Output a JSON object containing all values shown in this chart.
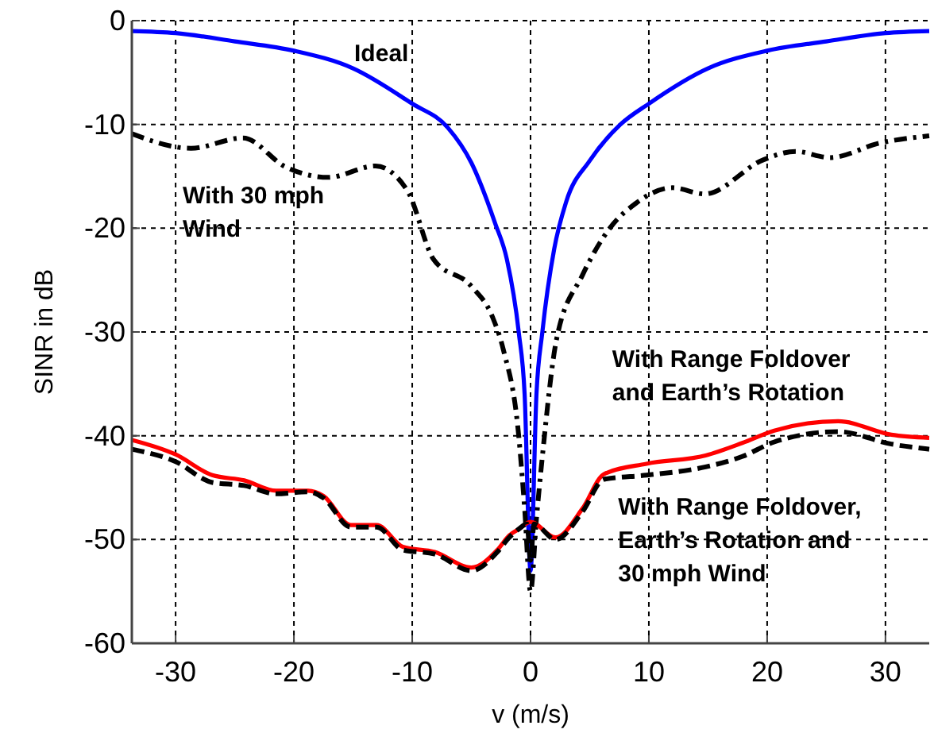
{
  "chart_data": {
    "type": "line",
    "xlabel": "v (m/s)",
    "ylabel": "SINR in dB",
    "xlim": [
      -33.7,
      33.7
    ],
    "ylim": [
      -60,
      0
    ],
    "xticks": [
      -30,
      -20,
      -10,
      0,
      10,
      20,
      30
    ],
    "yticks": [
      -60,
      -50,
      -40,
      -30,
      -20,
      -10,
      0
    ],
    "grid": true,
    "series": [
      {
        "name": "Ideal",
        "color": "#0000ff",
        "line_style": "solid",
        "x": [
          -33.7,
          -30,
          -25,
          -20,
          -15,
          -10,
          -7,
          -5,
          -3,
          -2,
          -1,
          -0.5,
          0,
          0.5,
          1,
          2,
          3,
          5,
          7.6,
          10,
          15,
          20,
          25,
          30,
          33.7
        ],
        "values": [
          -1.0,
          -1.2,
          -2.0,
          -2.9,
          -4.6,
          -8,
          -10.3,
          -13.7,
          -19.5,
          -23,
          -30,
          -36,
          -53,
          -36,
          -30,
          -22,
          -17.5,
          -13.5,
          -10,
          -8,
          -4.6,
          -2.9,
          -2.0,
          -1.2,
          -1.0
        ]
      },
      {
        "name": "With 30 mph\nWind",
        "color": "#000000",
        "line_style": "dashdot",
        "x": [
          -33.7,
          -28.7,
          -24.3,
          -20.7,
          -17.1,
          -13.1,
          -10.4,
          -8.2,
          -5,
          -3.2,
          -2.3,
          -1,
          -0.5,
          0,
          0.5,
          1,
          2.2,
          4.4,
          6.7,
          8.9,
          12,
          14.7,
          19.7,
          22.4,
          25.3,
          29.5,
          33.7
        ],
        "values": [
          -10.9,
          -12.3,
          -11.3,
          -14.1,
          -15.1,
          -14,
          -16.4,
          -23,
          -25.6,
          -28.6,
          -31.7,
          -40,
          -47,
          -55,
          -48,
          -42,
          -30.7,
          -24.5,
          -20,
          -17.6,
          -16.1,
          -16.7,
          -13.4,
          -12.6,
          -13.2,
          -11.8,
          -11.1
        ]
      },
      {
        "name": "With Range Foldover\nand Earth’s Rotation",
        "color": "#ff0000",
        "line_style": "solid",
        "x": [
          -33.7,
          -30,
          -26.9,
          -24.2,
          -21.5,
          -18.8,
          -17.5,
          -15.2,
          -13,
          -10.8,
          -8.1,
          -5,
          -2.8,
          -1.8,
          -1,
          0,
          2.1,
          4.4,
          6.2,
          9.8,
          14.8,
          17.9,
          20.6,
          26,
          30.5,
          33.7
        ],
        "values": [
          -40.4,
          -41.8,
          -43.8,
          -44.3,
          -45.3,
          -45.3,
          -45.8,
          -48.6,
          -48.6,
          -50.7,
          -51.2,
          -52.7,
          -51,
          -49.6,
          -49,
          -48.3,
          -49.8,
          -47,
          -43.7,
          -42.7,
          -41.9,
          -40.7,
          -39.5,
          -38.6,
          -39.9,
          -40.2
        ]
      },
      {
        "name": "With Range Foldover,\nEarth’s Rotation and\n30 mph Wind",
        "color": "#000000",
        "line_style": "dashed",
        "x": [
          -33.7,
          -30,
          -26.9,
          -24.2,
          -21.5,
          -18.8,
          -17.5,
          -15.2,
          -13,
          -10.8,
          -8.1,
          -5,
          -2.8,
          -1.8,
          -1,
          -0.3,
          0,
          0.3,
          2.1,
          4.4,
          6.2,
          9.8,
          14.8,
          17.9,
          20.6,
          26,
          30.5,
          33.7
        ],
        "values": [
          -41.3,
          -42.5,
          -44.5,
          -44.8,
          -45.6,
          -45.4,
          -46,
          -48.8,
          -48.8,
          -51,
          -51.4,
          -53,
          -51.2,
          -49.8,
          -49,
          -48.5,
          -52,
          -48.5,
          -50,
          -47.3,
          -44.2,
          -43.8,
          -43,
          -42,
          -40.6,
          -39.6,
          -40.8,
          -41.3
        ]
      }
    ]
  }
}
